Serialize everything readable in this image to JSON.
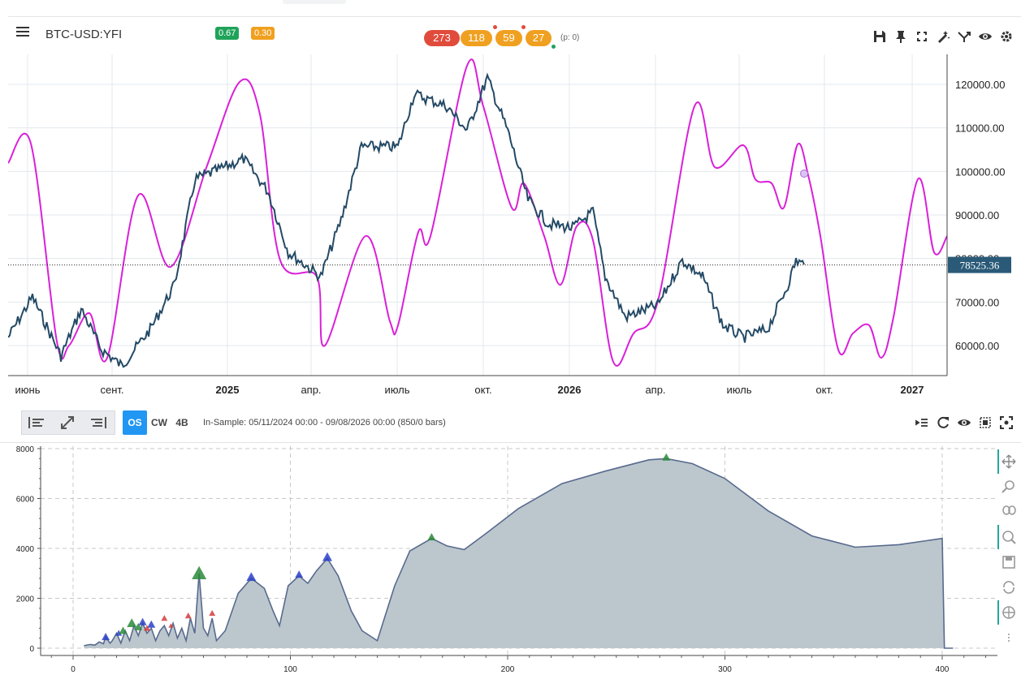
{
  "header": {
    "symbol": "BTC-USD:YFI",
    "badges": [
      {
        "text": "0.67",
        "color": "#1fa35a"
      },
      {
        "text": "0.30",
        "color": "#f0a020"
      }
    ],
    "pills": [
      {
        "text": "273",
        "color": "#e04b3c"
      },
      {
        "text": "118",
        "color": "#f0a020"
      },
      {
        "text": "59",
        "color": "#f0a020"
      },
      {
        "text": "27",
        "color": "#f0a020"
      }
    ],
    "p_info": "(p: 0)",
    "toolbar_icons": [
      "save-icon",
      "pin-icon",
      "fullscreen-icon",
      "magic-wand-icon",
      "branch-icon",
      "eye-icon",
      "settings-icon"
    ]
  },
  "price_chart": {
    "y_ticks": [
      "120000.00",
      "110000.00",
      "100000.00",
      "90000.00",
      "80000.00",
      "70000.00",
      "60000.00"
    ],
    "x_ticks": [
      {
        "label": "июнь",
        "bold": false
      },
      {
        "label": "сент.",
        "bold": false
      },
      {
        "label": "2025",
        "bold": true
      },
      {
        "label": "апр.",
        "bold": false
      },
      {
        "label": "июль",
        "bold": false
      },
      {
        "label": "окт.",
        "bold": false
      },
      {
        "label": "2026",
        "bold": true
      },
      {
        "label": "апр.",
        "bold": false
      },
      {
        "label": "июль",
        "bold": false
      },
      {
        "label": "окт.",
        "bold": false
      },
      {
        "label": "2027",
        "bold": true
      }
    ],
    "current_price": "78525.36",
    "price_color": "#244a66",
    "cycle_color": "#d920d9",
    "accent_color": "#2a5a78"
  },
  "toolbar2": {
    "modes": [
      "OS",
      "CW",
      "4B"
    ],
    "active_mode": "OS",
    "in_sample": "In-Sample: 05/11/2024 00:00 - 09/08/2026 00:00 (850/0 bars)",
    "icons": [
      "list-indent-icon",
      "refresh-icon",
      "eye-icon",
      "select-icon",
      "target-icon"
    ]
  },
  "equity_chart": {
    "y_ticks": [
      "8000",
      "6000",
      "4000",
      "2000",
      "0"
    ],
    "x_ticks": [
      "0",
      "100",
      "200",
      "300",
      "400"
    ],
    "fill_color": "#bcc7cd",
    "line_color": "#586a8e",
    "side_tools": [
      "move-icon",
      "zoom-icon",
      "lasso-icon",
      "wheel-zoom-icon",
      "save-icon",
      "reset-icon",
      "crosshair-icon"
    ]
  }
}
